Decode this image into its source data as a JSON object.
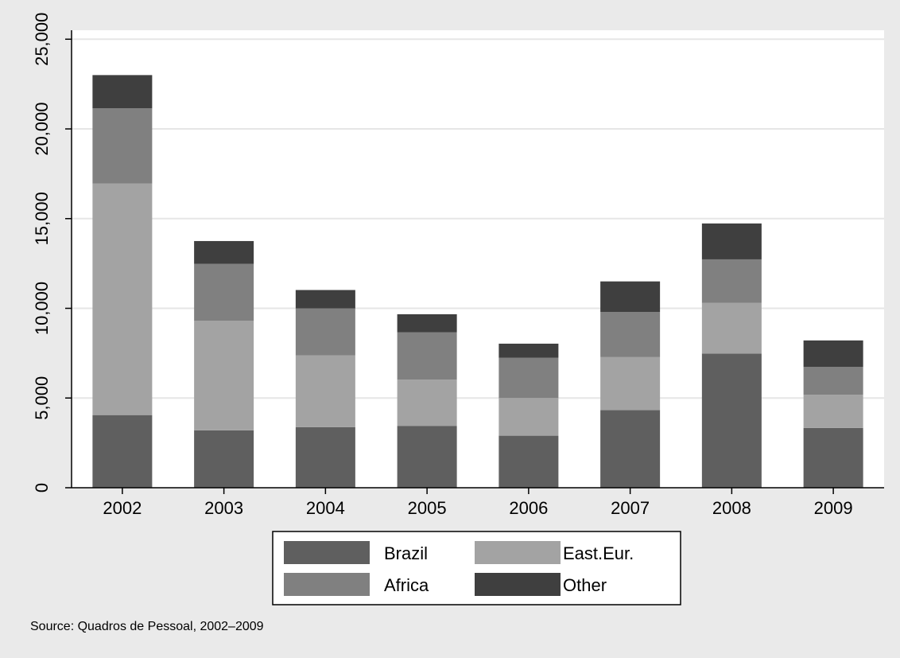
{
  "chart_data": {
    "type": "bar",
    "stacked": true,
    "categories": [
      "2002",
      "2003",
      "2004",
      "2005",
      "2006",
      "2007",
      "2008",
      "2009"
    ],
    "series": [
      {
        "name": "Brazil",
        "color": "#5f5f5f",
        "values": [
          4050,
          3200,
          3380,
          3450,
          2900,
          4330,
          7480,
          3330
        ]
      },
      {
        "name": "East.Eur.",
        "color": "#a3a3a3",
        "values": [
          12900,
          6100,
          4000,
          2570,
          2100,
          2950,
          2830,
          1850
        ]
      },
      {
        "name": "Africa",
        "color": "#808080",
        "values": [
          4200,
          3180,
          2620,
          2650,
          2250,
          2520,
          2420,
          1550
        ]
      },
      {
        "name": "Other",
        "color": "#3f3f3f",
        "values": [
          1850,
          1270,
          1020,
          1000,
          780,
          1700,
          2000,
          1480
        ]
      }
    ],
    "yticks": [
      0,
      5000,
      10000,
      15000,
      20000,
      25000
    ],
    "ytick_labels": [
      "0",
      "5,000",
      "10,000",
      "15,000",
      "20,000",
      "25,000"
    ],
    "ylim": [
      0,
      25500
    ],
    "grid": true,
    "legend_position": "bottom",
    "note": "Source: Quadros de Pessoal, 2002–2009"
  }
}
